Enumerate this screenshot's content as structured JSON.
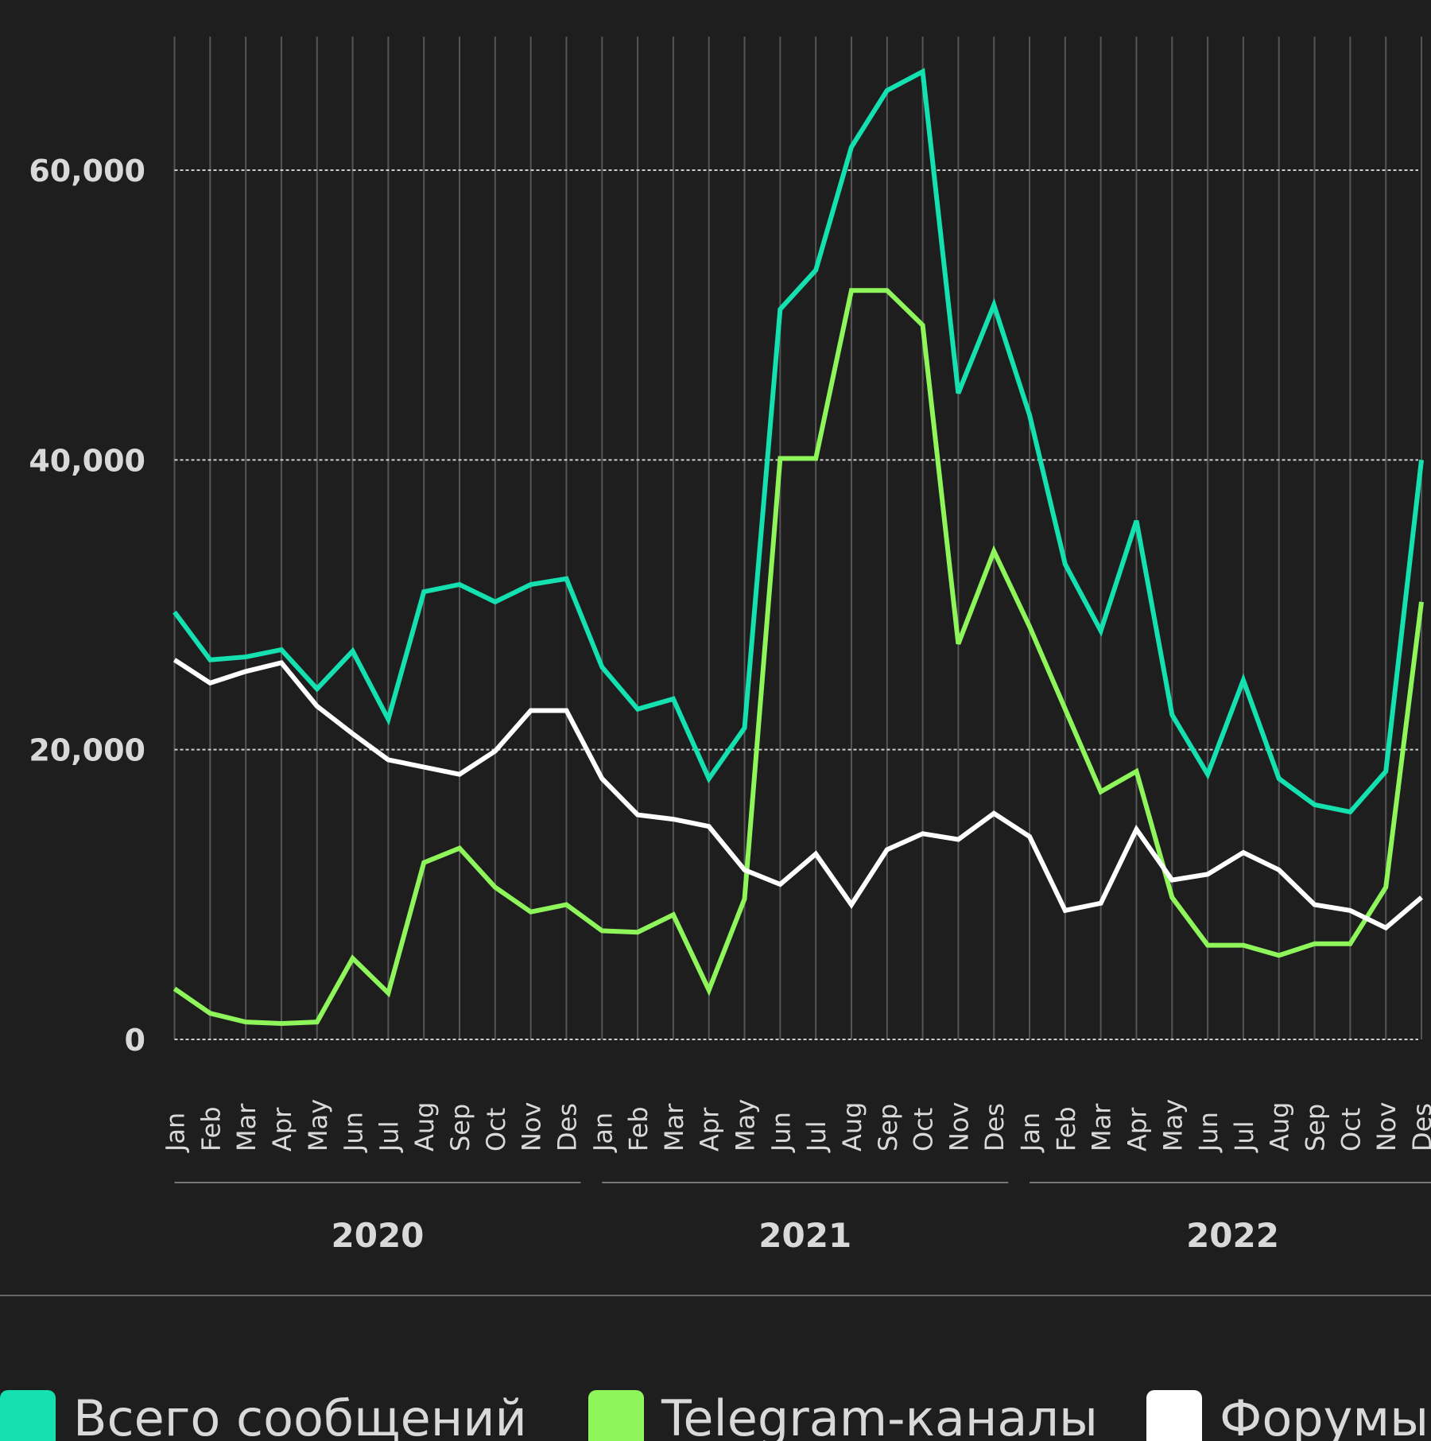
{
  "chart_data": {
    "type": "line",
    "categories": [
      "Jan",
      "Feb",
      "Mar",
      "Apr",
      "May",
      "Jun",
      "Jul",
      "Aug",
      "Sep",
      "Oct",
      "Nov",
      "Des",
      "Jan",
      "Feb",
      "Mar",
      "Apr",
      "May",
      "Jun",
      "Jul",
      "Aug",
      "Sep",
      "Oct",
      "Nov",
      "Des",
      "Jan",
      "Feb",
      "Mar",
      "Apr",
      "May",
      "Jun",
      "Jul",
      "Aug",
      "Sep",
      "Oct",
      "Nov",
      "Des"
    ],
    "years": [
      "2020",
      "2021",
      "2022"
    ],
    "ylim": [
      0,
      60000
    ],
    "yticks": [
      {
        "value": 0,
        "label": "0"
      },
      {
        "value": 20000,
        "label": "20,000"
      },
      {
        "value": 40000,
        "label": "40,000"
      },
      {
        "value": 60000,
        "label": "60,000"
      }
    ],
    "grid": true,
    "legend": "bottom",
    "series": [
      {
        "name": "Всего сообщений",
        "color": "#14e0b0",
        "values": [
          29500,
          26200,
          26400,
          26900,
          24200,
          26800,
          22100,
          30900,
          31400,
          30200,
          31400,
          31800,
          25700,
          22800,
          23500,
          18000,
          21500,
          50400,
          53100,
          61600,
          65500,
          66800,
          44600,
          50700,
          43100,
          32800,
          28200,
          35800,
          22400,
          18300,
          24800,
          18000,
          16200,
          15700,
          18500,
          40000
        ]
      },
      {
        "name": "Telegram-каналы",
        "color": "#8ef55a",
        "values": [
          3500,
          1800,
          1200,
          1100,
          1200,
          5600,
          3200,
          12200,
          13200,
          10500,
          8800,
          9300,
          7500,
          7400,
          8600,
          3400,
          9700,
          40100,
          40100,
          51700,
          51700,
          49300,
          27300,
          33700,
          28500,
          22800,
          17100,
          18500,
          9800,
          6500,
          6500,
          5800,
          6600,
          6600,
          10500,
          30200
        ]
      },
      {
        "name": "Форумы",
        "color": "#ffffff",
        "values": [
          26200,
          24600,
          25400,
          26000,
          23000,
          21100,
          19300,
          18800,
          18300,
          19900,
          22700,
          22700,
          18000,
          15500,
          15200,
          14700,
          11700,
          10700,
          12800,
          9300,
          13100,
          14200,
          13800,
          15600,
          14000,
          8900,
          9400,
          14500,
          11000,
          11400,
          12900,
          11700,
          9300,
          8900,
          7700,
          9800
        ]
      }
    ]
  }
}
